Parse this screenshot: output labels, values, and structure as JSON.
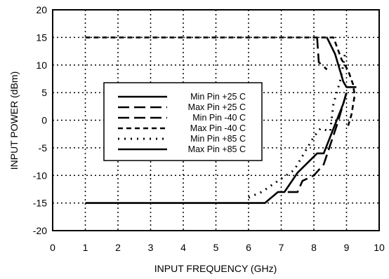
{
  "chart_data": {
    "type": "line",
    "title": "",
    "xlabel": "INPUT FREQUENCY (GHz)",
    "ylabel": "INPUT POWER (dBm)",
    "xlim": [
      0,
      10
    ],
    "ylim": [
      -20,
      20
    ],
    "x_ticks": [
      "0",
      "1",
      "2",
      "3",
      "4",
      "5",
      "6",
      "7",
      "8",
      "9",
      "10"
    ],
    "y_ticks": [
      "-20",
      "-15",
      "-10",
      "-5",
      "0",
      "5",
      "10",
      "15",
      "20"
    ],
    "grid": true,
    "legend_position": "center",
    "series": [
      {
        "name": "Min Pin +25 C",
        "style": "solid",
        "points": [
          [
            1,
            -15
          ],
          [
            6.5,
            -15
          ],
          [
            6.9,
            -13
          ],
          [
            7.1,
            -13
          ],
          [
            7.5,
            -9.5
          ],
          [
            8.1,
            -6
          ],
          [
            8.3,
            -6
          ],
          [
            8.9,
            3
          ],
          [
            9.0,
            5
          ]
        ]
      },
      {
        "name": "Max Pin +25 C",
        "style": "longdash",
        "points": [
          [
            8.1,
            15
          ],
          [
            8.15,
            10.5
          ],
          [
            8.4,
            9.2
          ]
        ]
      },
      {
        "name": "Min Pin -40 C",
        "style": "longdash",
        "points": [
          [
            7.2,
            -13
          ],
          [
            7.5,
            -13
          ],
          [
            7.65,
            -11
          ],
          [
            8.0,
            -10
          ],
          [
            8.3,
            -8
          ],
          [
            8.7,
            -1
          ],
          [
            8.9,
            3
          ],
          [
            9.0,
            5
          ]
        ]
      },
      {
        "name": "Max Pin -40 C",
        "style": "dash",
        "points": [
          [
            1,
            15
          ],
          [
            8.6,
            15
          ],
          [
            8.85,
            11
          ],
          [
            9.05,
            9
          ],
          [
            9.2,
            6.5
          ],
          [
            9.25,
            4.5
          ],
          [
            9.15,
            1
          ],
          [
            9.05,
            -1
          ]
        ]
      },
      {
        "name": "Min Pin +85 C",
        "style": "dot",
        "points": [
          [
            6.0,
            -14
          ],
          [
            6.4,
            -13
          ],
          [
            6.9,
            -11
          ],
          [
            7.4,
            -9
          ],
          [
            7.8,
            -5
          ],
          [
            8.0,
            -3
          ],
          [
            8.2,
            -1.5
          ],
          [
            8.5,
            -2
          ],
          [
            8.6,
            3
          ],
          [
            8.8,
            7
          ],
          [
            8.9,
            10
          ],
          [
            8.95,
            12
          ]
        ]
      },
      {
        "name": "Max Pin +85 C",
        "style": "solid",
        "points": [
          [
            8.4,
            15
          ],
          [
            8.65,
            12
          ],
          [
            8.9,
            7
          ],
          [
            9.0,
            6
          ],
          [
            9.3,
            6
          ]
        ]
      }
    ]
  }
}
